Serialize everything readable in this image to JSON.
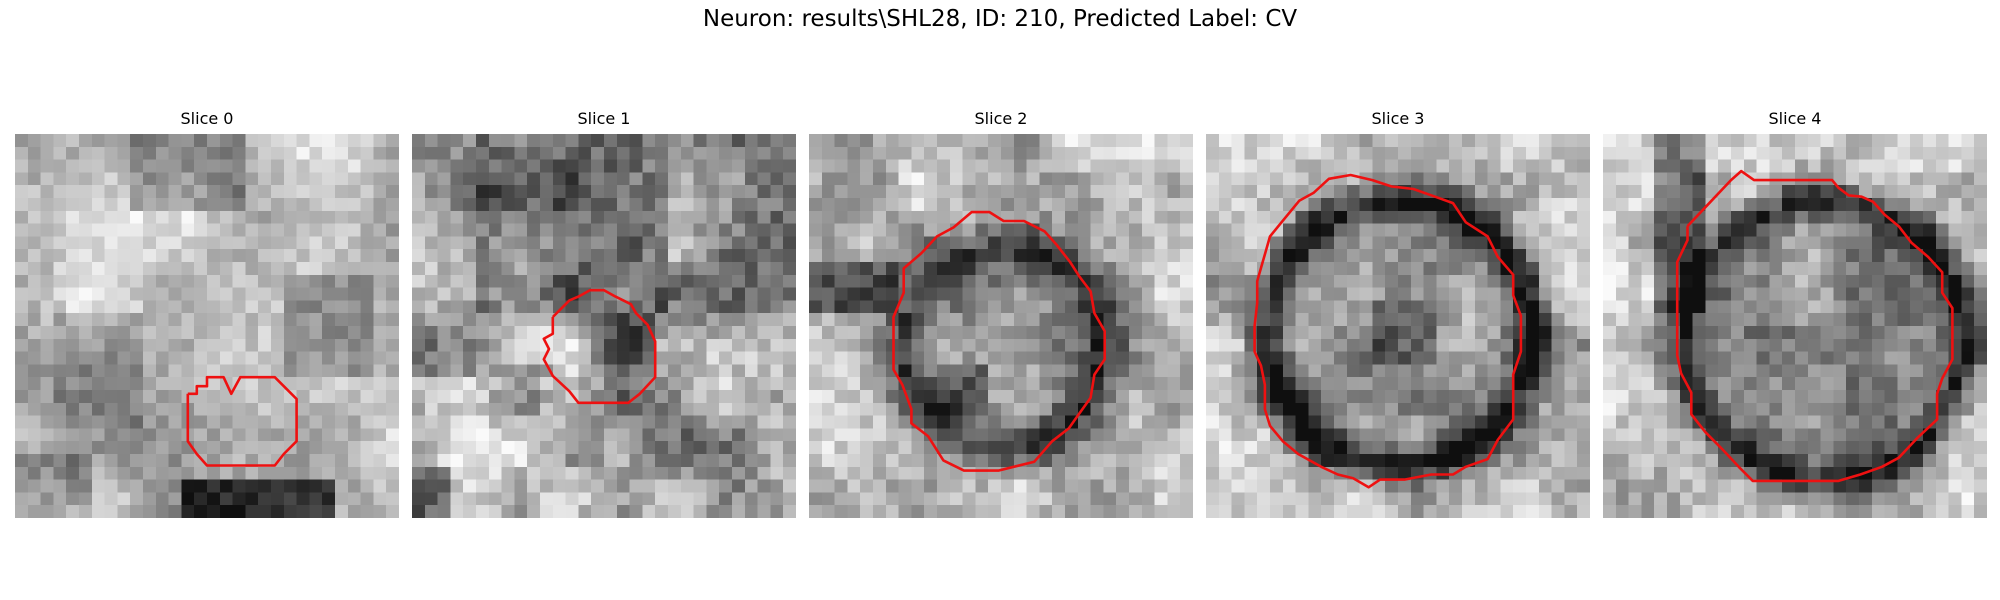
{
  "figure": {
    "title": "Neuron: results\\SHL28, ID: 210, Predicted Label: CV"
  },
  "contour_color": "#ee1111",
  "slices": [
    {
      "title": "Slice 0",
      "background": "bright",
      "contour": "small contour at lower middle"
    },
    {
      "title": "Slice 1",
      "background": "noisy",
      "contour": "small contour at center"
    },
    {
      "title": "Slice 2",
      "background": "dark ring",
      "contour": "medium contour"
    },
    {
      "title": "Slice 3",
      "background": "dark ring",
      "contour": "large contour"
    },
    {
      "title": "Slice 4",
      "background": "dark ring",
      "contour": "large contour"
    }
  ]
}
